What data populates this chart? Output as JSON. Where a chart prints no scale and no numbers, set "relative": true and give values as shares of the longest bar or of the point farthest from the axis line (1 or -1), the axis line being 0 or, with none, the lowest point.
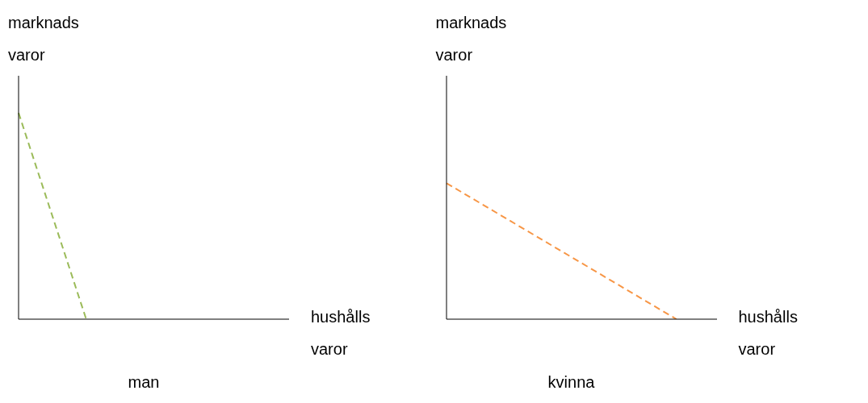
{
  "chart_data": [
    {
      "type": "line",
      "title": "man",
      "xlabel": "hushålls\nvaror",
      "ylabel": "marknads\nvaror",
      "relative": true,
      "line_style": "dashed",
      "categories": [
        null,
        null,
        null,
        null,
        null,
        null,
        null,
        null,
        null,
        null,
        null,
        null,
        null,
        null,
        null,
        null,
        null,
        null,
        null,
        null,
        null
      ],
      "series": [
        {
          "color": "#9bbb59",
          "values": [
            1,
            null,
            null,
            null,
            null,
            0,
            null,
            null,
            null,
            null,
            null,
            null,
            null,
            null,
            null,
            null,
            null,
            null,
            null,
            null,
            null
          ]
        }
      ]
    },
    {
      "type": "line",
      "title": "kvinna",
      "xlabel": "hushålls\nvaror",
      "ylabel": "marknads\nvaror",
      "relative": true,
      "line_style": "dashed",
      "categories": [
        null,
        null,
        null,
        null,
        null,
        null,
        null,
        null,
        null,
        null,
        null,
        null,
        null,
        null,
        null,
        null,
        null,
        null,
        null,
        null,
        null
      ],
      "series": [
        {
          "color": "#f79646",
          "values": [
            1,
            null,
            null,
            null,
            null,
            null,
            null,
            null,
            null,
            null,
            null,
            null,
            null,
            null,
            null,
            null,
            null,
            0,
            null,
            null,
            null
          ]
        }
      ]
    }
  ]
}
